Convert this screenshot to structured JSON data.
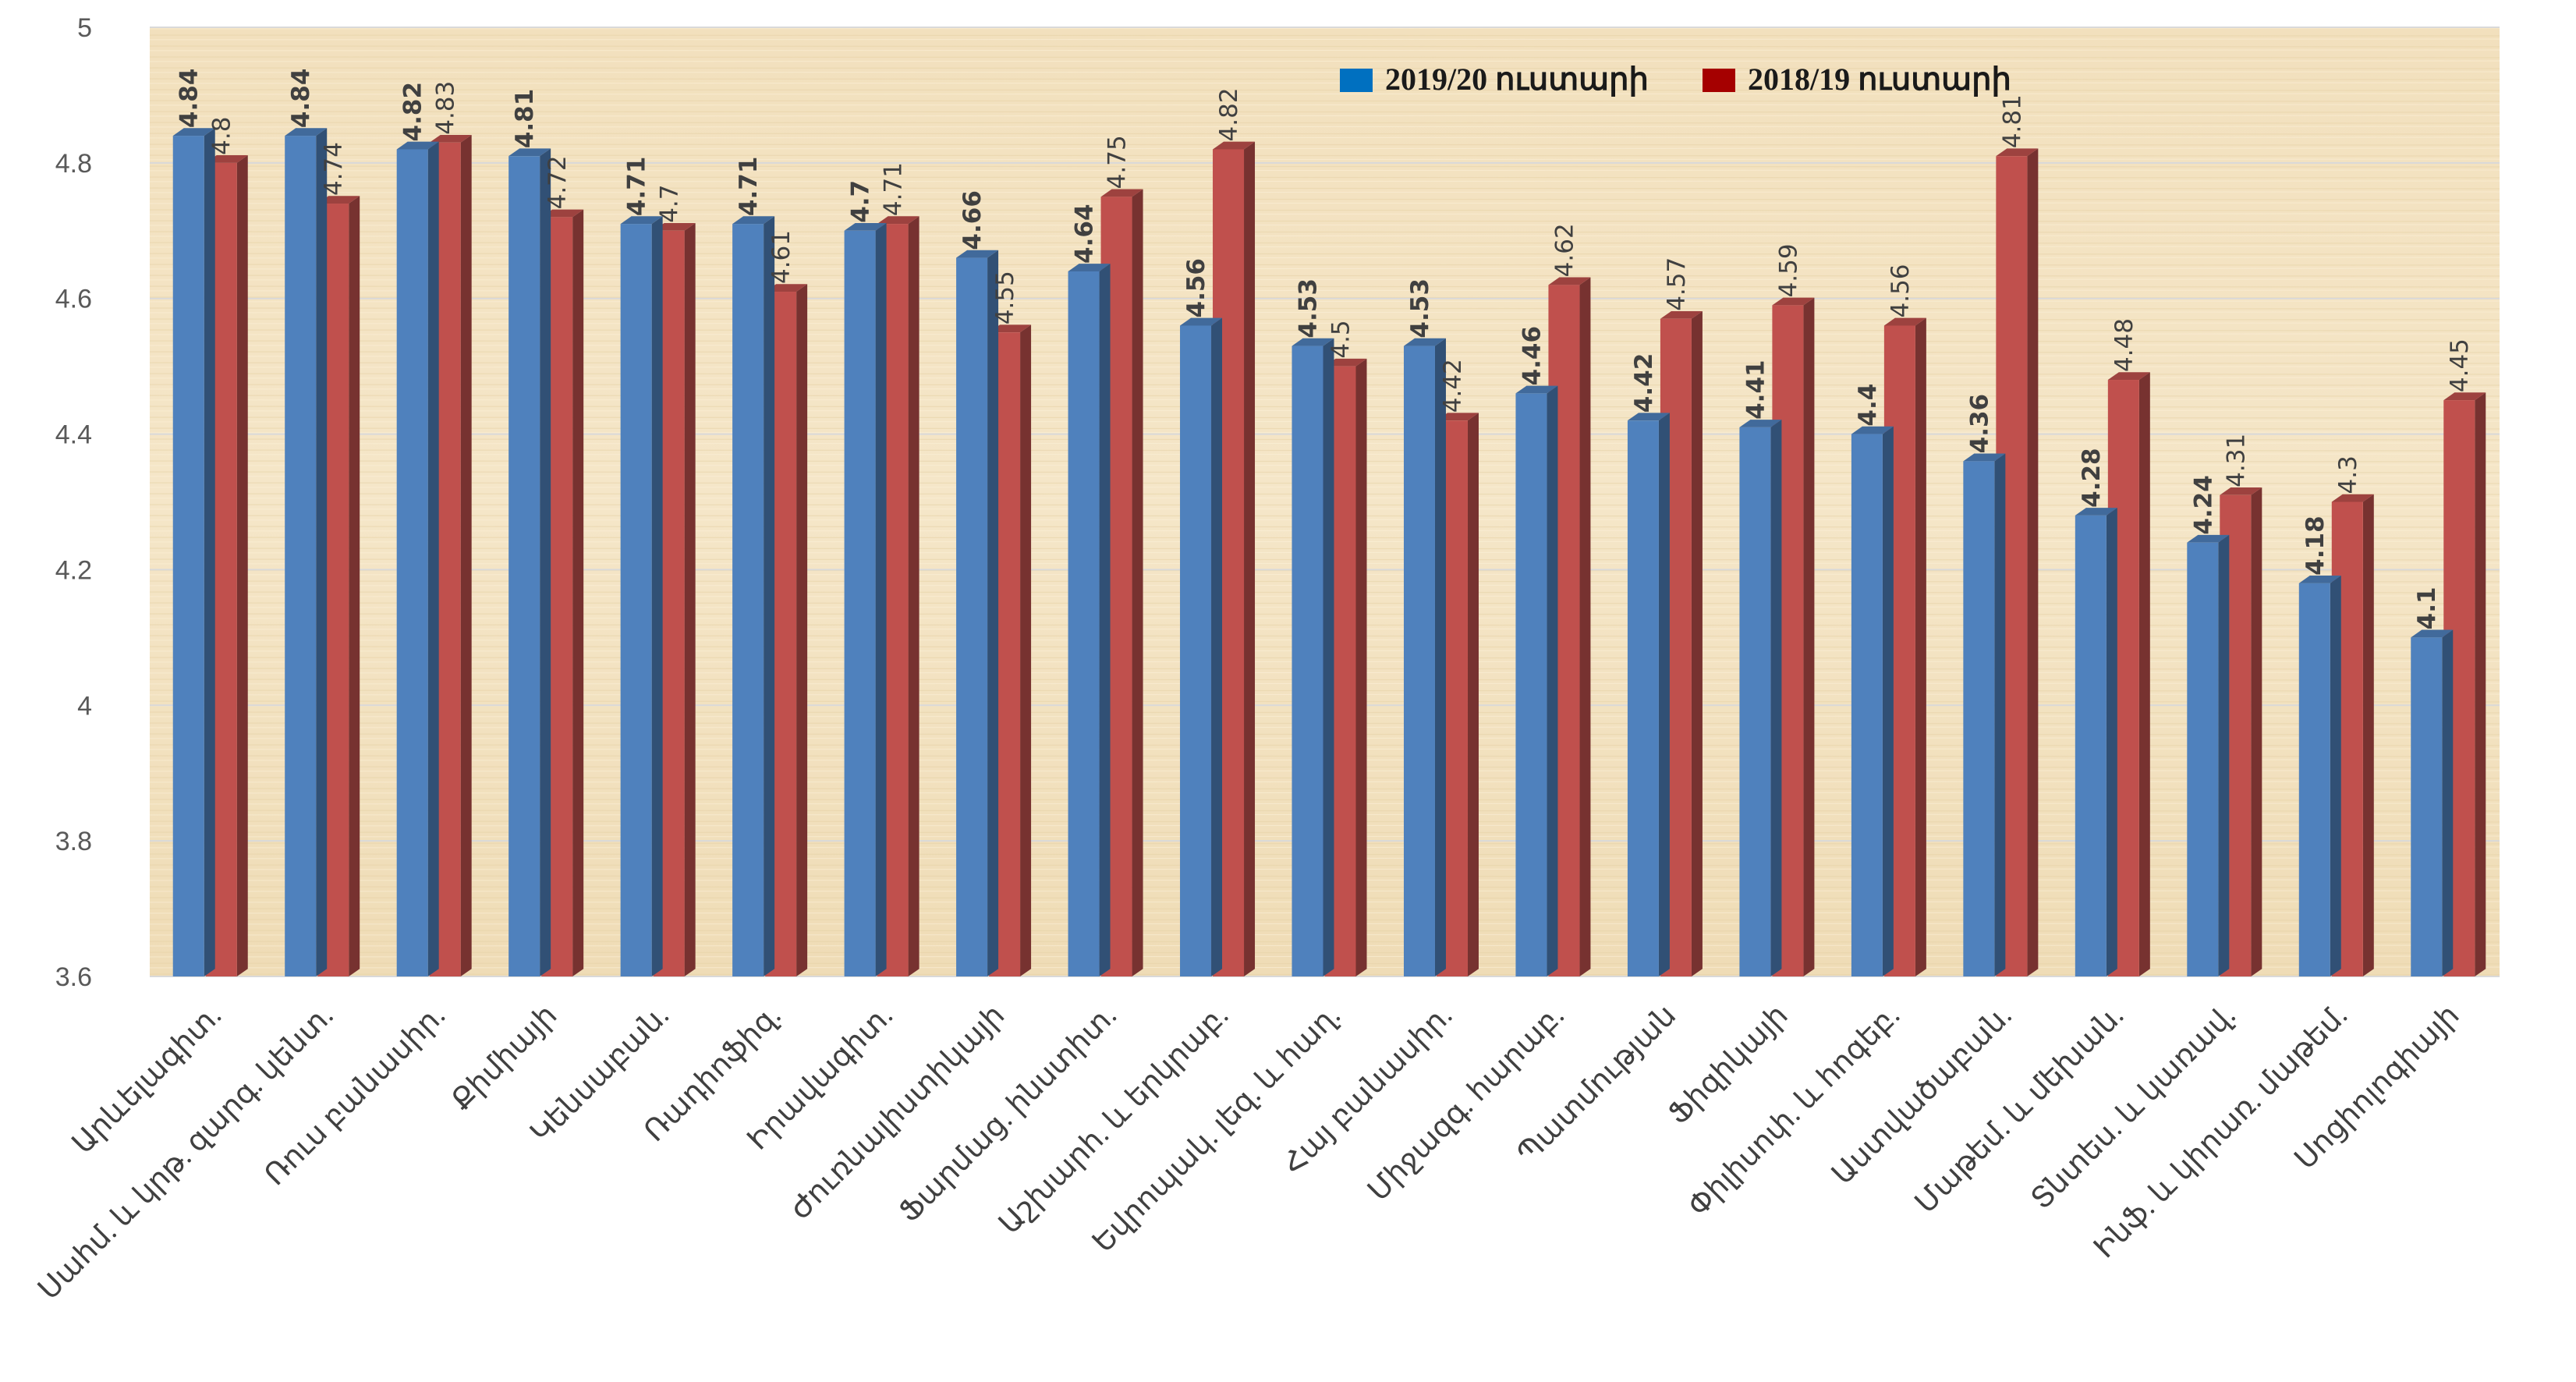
{
  "chart_data": {
    "type": "bar",
    "title": "",
    "xlabel": "",
    "ylabel": "",
    "ylim": [
      3.6,
      5
    ],
    "yticks": [
      3.6,
      3.8,
      4,
      4.2,
      4.4,
      4.6,
      4.8,
      5
    ],
    "grid": true,
    "legend_position": "top-right",
    "categories": [
      "Արևելագիտ.",
      "Սահմ. և կրթ. զարգ. կենտ.",
      "Ռուս բանասիր.",
      "Քիմիայի",
      "Կենսաբան.",
      "Ռադիոֆիզ.",
      "Իրավագիտ.",
      "Ժուռնալիստիկայի",
      "Ֆարմաց. ինստիտ.",
      "Աշխարհ. և երկրաբ.",
      "Եվրոպակ. լեզ. և հաղ.",
      "Հայ բանասիր.",
      "Միջազգ. հարաբ.",
      "Պատմության",
      "Ֆիզիկայի",
      "Փիլիսոփ. և հոգեբ.",
      "Աստվածաբան.",
      "Մաթեմ. և մեխան.",
      "Տնտես. և կառավ.",
      "Ինֆ. և կիրառ. մաթեմ.",
      "Սոցիոլոգիայի"
    ],
    "series": [
      {
        "name": "2019/20 ուստարի",
        "color": "#4f81bd",
        "values": [
          4.84,
          4.84,
          4.82,
          4.81,
          4.71,
          4.71,
          4.7,
          4.66,
          4.64,
          4.56,
          4.53,
          4.53,
          4.46,
          4.42,
          4.41,
          4.4,
          4.36,
          4.28,
          4.24,
          4.18,
          4.1
        ]
      },
      {
        "name": "2018/19 ուստարի",
        "color": "#c0504d",
        "values": [
          4.8,
          4.74,
          4.83,
          4.72,
          4.7,
          4.61,
          4.71,
          4.55,
          4.75,
          4.82,
          4.5,
          4.42,
          4.62,
          4.57,
          4.59,
          4.56,
          4.81,
          4.48,
          4.31,
          4.3,
          4.45
        ]
      }
    ],
    "legend_swatch_colors": [
      "#0070c0",
      "#a50000"
    ],
    "plot_background": "#f3e3c3",
    "gridline_color": "#d9d9d9"
  }
}
